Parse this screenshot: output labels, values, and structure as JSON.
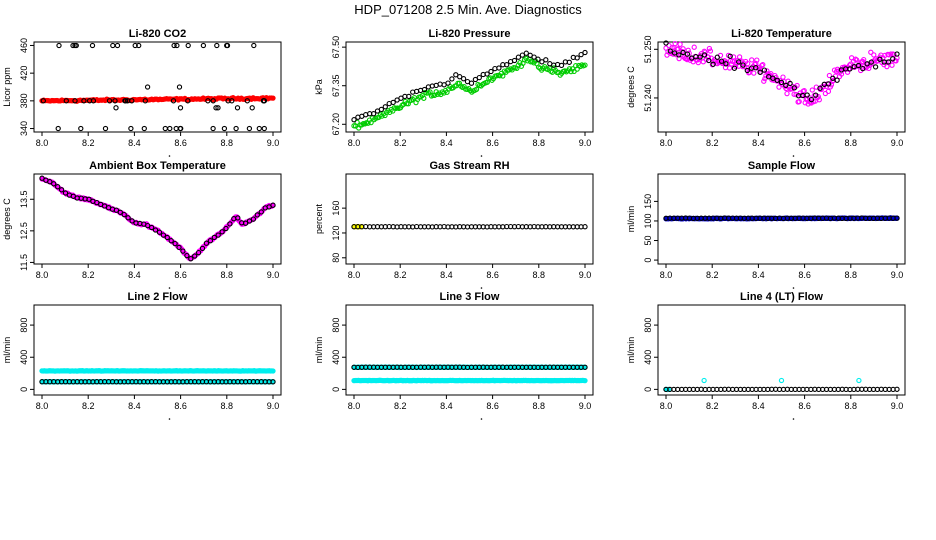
{
  "title": "HDP_071208  2.5 Min. Ave. Diagnostics",
  "chart_data": [
    {
      "type": "scatter",
      "title": "Li-820 CO2",
      "ylabel": "Licor ppm",
      "xlabel": "",
      "xlim": [
        8.0,
        9.0
      ],
      "ylim": [
        335,
        465
      ],
      "xticks": [
        "8.0",
        "8.2",
        "8.4",
        "8.6",
        "8.8",
        "9.0"
      ],
      "yticks": [
        {
          "value": 340,
          "label": "340"
        },
        {
          "value": 380,
          "label": "380"
        },
        {
          "value": 420,
          "label": "420"
        },
        {
          "value": 460,
          "label": "460"
        }
      ],
      "series": [
        {
          "name": "CO2 (red)",
          "color": "#ff0000",
          "filled": true,
          "gen": {
            "kind": "line",
            "start": 380,
            "end": 384,
            "noise": 1.2,
            "n": 140
          }
        },
        {
          "name": "CO2 (black)",
          "color": "#000000",
          "filled": false,
          "gen": {
            "kind": "levels",
            "levels": [
              340,
              370,
              380,
              400,
              460
            ],
            "weights": [
              2,
              1,
              3,
              1,
              2
            ],
            "n": 64
          }
        }
      ]
    },
    {
      "type": "scatter",
      "title": "Li-820 Pressure",
      "ylabel": "kPa",
      "xlabel": "",
      "xlim": [
        8.0,
        9.0
      ],
      "ylim": [
        67.17,
        67.52
      ],
      "xticks": [
        "8.0",
        "8.2",
        "8.4",
        "8.6",
        "8.8",
        "9.0"
      ],
      "yticks": [
        {
          "value": 67.2,
          "label": "67.20"
        },
        {
          "value": 67.35,
          "label": "67.35"
        },
        {
          "value": 67.5,
          "label": "67.50"
        }
      ],
      "series": [
        {
          "name": "Pressure (green)",
          "color": "#00cc00",
          "filled": false,
          "gen": {
            "kind": "path",
            "pts": [
              [
                8.0,
                67.19
              ],
              [
                8.1,
                67.22
              ],
              [
                8.2,
                67.27
              ],
              [
                8.3,
                67.31
              ],
              [
                8.4,
                67.33
              ],
              [
                8.45,
                67.36
              ],
              [
                8.5,
                67.33
              ],
              [
                8.6,
                67.38
              ],
              [
                8.7,
                67.42
              ],
              [
                8.75,
                67.46
              ],
              [
                8.8,
                67.42
              ],
              [
                8.9,
                67.4
              ],
              [
                9.0,
                67.43
              ]
            ],
            "noise": 0.012,
            "n": 150
          }
        },
        {
          "name": "Pressure (black)",
          "color": "#000000",
          "filled": false,
          "gen": {
            "kind": "path",
            "pts": [
              [
                8.0,
                67.22
              ],
              [
                8.1,
                67.25
              ],
              [
                8.2,
                67.3
              ],
              [
                8.3,
                67.34
              ],
              [
                8.4,
                67.36
              ],
              [
                8.45,
                67.39
              ],
              [
                8.5,
                67.36
              ],
              [
                8.6,
                67.41
              ],
              [
                8.7,
                67.45
              ],
              [
                8.75,
                67.48
              ],
              [
                8.8,
                67.45
              ],
              [
                8.9,
                67.43
              ],
              [
                9.0,
                67.48
              ]
            ],
            "noise": 0.006,
            "n": 60
          }
        }
      ]
    },
    {
      "type": "scatter",
      "title": "Li-820 Temperature",
      "ylabel": "degrees C",
      "xlabel": "",
      "xlim": [
        8.0,
        9.0
      ],
      "ylim": [
        51.233,
        51.2515
      ],
      "xticks": [
        "8.0",
        "8.2",
        "8.4",
        "8.6",
        "8.8",
        "9.0"
      ],
      "yticks": [
        {
          "value": 51.24,
          "label": "51.240"
        },
        {
          "value": 51.25,
          "label": "51.250"
        }
      ],
      "series": [
        {
          "name": "Temperature (magenta)",
          "color": "#ff00ff",
          "filled": false,
          "gen": {
            "kind": "path",
            "pts": [
              [
                8.0,
                51.25
              ],
              [
                8.2,
                51.248
              ],
              [
                8.4,
                51.246
              ],
              [
                8.55,
                51.242
              ],
              [
                8.62,
                51.239
              ],
              [
                8.7,
                51.243
              ],
              [
                8.8,
                51.247
              ],
              [
                9.0,
                51.248
              ]
            ],
            "noise": 0.0017,
            "n": 230
          }
        },
        {
          "name": "Temperature (black)",
          "color": "#000000",
          "filled": false,
          "gen": {
            "kind": "path",
            "pts": [
              [
                8.0,
                51.25
              ],
              [
                8.2,
                51.248
              ],
              [
                8.4,
                51.246
              ],
              [
                8.55,
                51.242
              ],
              [
                8.62,
                51.239
              ],
              [
                8.7,
                51.243
              ],
              [
                8.8,
                51.247
              ],
              [
                9.0,
                51.248
              ]
            ],
            "noise": 0.0013,
            "n": 55
          }
        }
      ]
    },
    {
      "type": "scatter",
      "title": "Ambient Box Temperature",
      "ylabel": "degrees C",
      "xlabel": "",
      "xlim": [
        8.0,
        9.0
      ],
      "ylim": [
        11.45,
        14.3
      ],
      "xticks": [
        "8.0",
        "8.2",
        "8.4",
        "8.6",
        "8.8",
        "9.0"
      ],
      "yticks": [
        {
          "value": 11.5,
          "label": "11.5"
        },
        {
          "value": 12.5,
          "label": "12.5"
        },
        {
          "value": 13.5,
          "label": "13.5"
        }
      ],
      "series": [
        {
          "name": "Box temp (magenta)",
          "color": "#ff00ff",
          "filled": true,
          "gen": {
            "kind": "path",
            "pts": [
              [
                8.0,
                14.15
              ],
              [
                8.05,
                14.0
              ],
              [
                8.1,
                13.7
              ],
              [
                8.15,
                13.55
              ],
              [
                8.2,
                13.5
              ],
              [
                8.25,
                13.35
              ],
              [
                8.3,
                13.2
              ],
              [
                8.35,
                13.05
              ],
              [
                8.4,
                12.75
              ],
              [
                8.45,
                12.7
              ],
              [
                8.5,
                12.5
              ],
              [
                8.55,
                12.25
              ],
              [
                8.6,
                11.95
              ],
              [
                8.64,
                11.6
              ],
              [
                8.67,
                11.75
              ],
              [
                8.72,
                12.15
              ],
              [
                8.78,
                12.45
              ],
              [
                8.84,
                12.95
              ],
              [
                8.87,
                12.7
              ],
              [
                8.92,
                12.9
              ],
              [
                8.97,
                13.25
              ],
              [
                9.0,
                13.3
              ]
            ],
            "noise": 0.03,
            "n": 180
          }
        },
        {
          "name": "Box temp (black)",
          "color": "#000000",
          "filled": false,
          "gen": {
            "kind": "path",
            "pts": [
              [
                8.0,
                14.15
              ],
              [
                8.05,
                14.0
              ],
              [
                8.1,
                13.7
              ],
              [
                8.15,
                13.55
              ],
              [
                8.2,
                13.5
              ],
              [
                8.25,
                13.35
              ],
              [
                8.3,
                13.2
              ],
              [
                8.35,
                13.05
              ],
              [
                8.4,
                12.75
              ],
              [
                8.45,
                12.7
              ],
              [
                8.5,
                12.5
              ],
              [
                8.55,
                12.25
              ],
              [
                8.6,
                11.95
              ],
              [
                8.64,
                11.6
              ],
              [
                8.67,
                11.75
              ],
              [
                8.72,
                12.15
              ],
              [
                8.78,
                12.45
              ],
              [
                8.84,
                12.95
              ],
              [
                8.87,
                12.7
              ],
              [
                8.92,
                12.9
              ],
              [
                8.97,
                13.25
              ],
              [
                9.0,
                13.3
              ]
            ],
            "noise": 0.02,
            "n": 60
          }
        }
      ]
    },
    {
      "type": "scatter",
      "title": "Gas Stream RH",
      "ylabel": "percent",
      "xlabel": "",
      "xlim": [
        8.0,
        9.0
      ],
      "ylim": [
        70,
        215
      ],
      "xticks": [
        "8.0",
        "8.2",
        "8.4",
        "8.6",
        "8.8",
        "9.0"
      ],
      "yticks": [
        {
          "value": 80,
          "label": "80"
        },
        {
          "value": 120,
          "label": "120"
        },
        {
          "value": 160,
          "label": "160"
        }
      ],
      "series": [
        {
          "name": "RH (yellow)",
          "color": "#ffff00",
          "filled": true,
          "gen": {
            "kind": "line",
            "start": 130,
            "end": 130,
            "noise": 0.3,
            "n": 6,
            "xmax": 8.03
          }
        },
        {
          "name": "RH (black)",
          "color": "#000000",
          "filled": false,
          "gen": {
            "kind": "line",
            "start": 130,
            "end": 130,
            "noise": 0.3,
            "n": 60
          }
        }
      ]
    },
    {
      "type": "scatter",
      "title": "Sample Flow",
      "ylabel": "ml/min",
      "xlabel": "",
      "xlim": [
        8.0,
        9.0
      ],
      "ylim": [
        -10,
        220
      ],
      "xticks": [
        "8.0",
        "8.2",
        "8.4",
        "8.6",
        "8.8",
        "9.0"
      ],
      "yticks": [
        {
          "value": 0,
          "label": "0"
        },
        {
          "value": 50,
          "label": "50"
        },
        {
          "value": 100,
          "label": "100"
        },
        {
          "value": 150,
          "label": "150"
        }
      ],
      "series": [
        {
          "name": "Sample flow (blue)",
          "color": "#0000cc",
          "filled": true,
          "gen": {
            "kind": "line",
            "start": 106,
            "end": 107,
            "noise": 0.8,
            "n": 220
          }
        },
        {
          "name": "Sample flow (black)",
          "color": "#000000",
          "filled": false,
          "gen": {
            "kind": "line",
            "start": 107,
            "end": 107,
            "noise": 0.6,
            "n": 60
          }
        }
      ]
    },
    {
      "type": "scatter",
      "title": "Line 2 Flow",
      "ylabel": "ml/min",
      "xlabel": "",
      "xlim": [
        8.0,
        9.0
      ],
      "ylim": [
        -70,
        1050
      ],
      "xticks": [
        "8.0",
        "8.2",
        "8.4",
        "8.6",
        "8.8",
        "9.0"
      ],
      "yticks": [
        {
          "value": 0,
          "label": "0"
        },
        {
          "value": 400,
          "label": "400"
        },
        {
          "value": 800,
          "label": "800"
        }
      ],
      "series": [
        {
          "name": "Line 2 (cyan high)",
          "color": "#00eeee",
          "filled": true,
          "gen": {
            "kind": "line",
            "start": 230,
            "end": 230,
            "noise": 2,
            "n": 200
          }
        },
        {
          "name": "Line 2 (cyan low)",
          "color": "#00eeee",
          "filled": true,
          "gen": {
            "kind": "line",
            "start": 95,
            "end": 95,
            "noise": 2,
            "n": 200
          }
        },
        {
          "name": "Line 2 (black)",
          "color": "#000000",
          "filled": false,
          "gen": {
            "kind": "line",
            "start": 95,
            "end": 95,
            "noise": 1,
            "n": 60
          }
        }
      ]
    },
    {
      "type": "scatter",
      "title": "Line 3 Flow",
      "ylabel": "ml/min",
      "xlabel": "",
      "xlim": [
        8.0,
        9.0
      ],
      "ylim": [
        -70,
        1050
      ],
      "xticks": [
        "8.0",
        "8.2",
        "8.4",
        "8.6",
        "8.8",
        "9.0"
      ],
      "yticks": [
        {
          "value": 0,
          "label": "0"
        },
        {
          "value": 400,
          "label": "400"
        },
        {
          "value": 800,
          "label": "800"
        }
      ],
      "series": [
        {
          "name": "Line 3 (cyan high)",
          "color": "#00eeee",
          "filled": true,
          "gen": {
            "kind": "line",
            "start": 275,
            "end": 275,
            "noise": 2,
            "n": 200
          }
        },
        {
          "name": "Line 3 (cyan low)",
          "color": "#00eeee",
          "filled": true,
          "gen": {
            "kind": "line",
            "start": 110,
            "end": 110,
            "noise": 2,
            "n": 200
          }
        },
        {
          "name": "Line 3 (black)",
          "color": "#000000",
          "filled": false,
          "gen": {
            "kind": "line",
            "start": 275,
            "end": 275,
            "noise": 1,
            "n": 60
          }
        }
      ]
    },
    {
      "type": "scatter",
      "title": "Line 4 (LT) Flow",
      "ylabel": "ml/min",
      "xlabel": "",
      "xlim": [
        8.0,
        9.0
      ],
      "ylim": [
        -70,
        1050
      ],
      "xticks": [
        "8.0",
        "8.2",
        "8.4",
        "8.6",
        "8.8",
        "9.0"
      ],
      "yticks": [
        {
          "value": 0,
          "label": "0"
        },
        {
          "value": 400,
          "label": "400"
        },
        {
          "value": 800,
          "label": "800"
        }
      ],
      "series": [
        {
          "name": "Line 4 (cyan)",
          "color": "#00eeee",
          "filled": true,
          "gen": {
            "kind": "line",
            "start": 0,
            "end": 0,
            "noise": 1,
            "n": 3,
            "xmax": 8.01
          }
        },
        {
          "name": "Line 4 (black)",
          "color": "#000000",
          "filled": false,
          "gen": {
            "kind": "line",
            "start": 0,
            "end": 0,
            "noise": 1,
            "n": 60
          }
        },
        {
          "name": "Line 4 spikes (cyan)",
          "color": "#00eeee",
          "filled": false,
          "gen": {
            "kind": "explicit",
            "pts": [
              [
                8.165,
                110
              ],
              [
                8.5,
                110
              ],
              [
                8.835,
                110
              ]
            ]
          }
        }
      ]
    }
  ]
}
